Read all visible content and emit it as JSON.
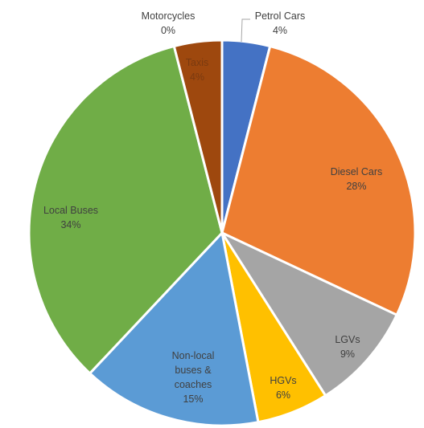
{
  "chart_data": {
    "type": "pie",
    "title": "",
    "start_angle_deg": 0,
    "direction": "clockwise",
    "slices": [
      {
        "name": "Petrol Cars",
        "value": 4,
        "label": "4%",
        "color": "#4472C4"
      },
      {
        "name": "Diesel Cars",
        "value": 28,
        "label": "28%",
        "color": "#ED7D31"
      },
      {
        "name": "LGVs",
        "value": 9,
        "label": "9%",
        "color": "#A5A5A5"
      },
      {
        "name": "HGVs",
        "value": 6,
        "label": "6%",
        "color": "#FFC000"
      },
      {
        "name": "Non-local buses & coaches",
        "value": 15,
        "label": "15%",
        "color": "#5B9BD5"
      },
      {
        "name": "Local Buses",
        "value": 34,
        "label": "34%",
        "color": "#70AD47"
      },
      {
        "name": "Motorcycles",
        "value": 0,
        "label": "0%",
        "color": "#264478"
      },
      {
        "name": "Taxis",
        "value": 4,
        "label": "4%",
        "color": "#9E480E"
      }
    ],
    "legend": "none"
  }
}
